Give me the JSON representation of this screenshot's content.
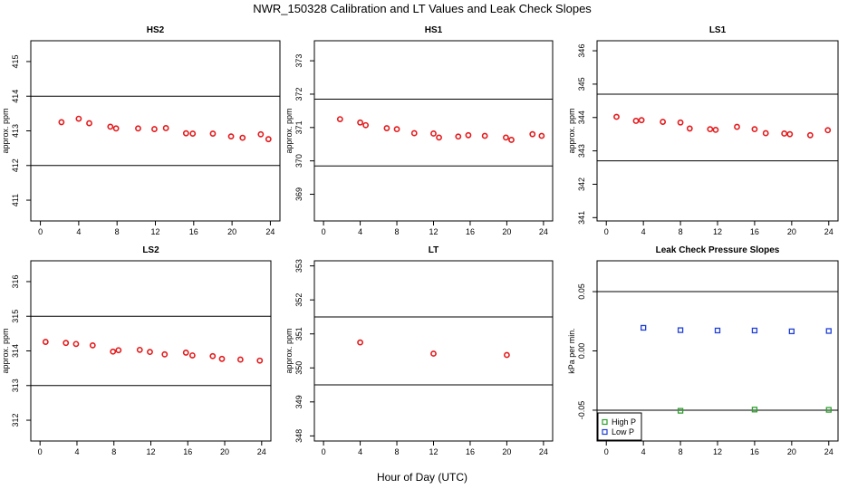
{
  "figure": {
    "title": "NWR_150328  Calibration and LT Values and Leak Check Slopes",
    "xlabel": "Hour of Day (UTC)"
  },
  "chart_data": [
    {
      "id": "hs2",
      "type": "scatter",
      "title": "HS2",
      "ylabel": "approx. ppm",
      "xlim": [
        -1,
        25
      ],
      "ylim": [
        410.4,
        415.6
      ],
      "xticks": [
        0,
        4,
        8,
        12,
        16,
        20,
        24
      ],
      "yticks": [
        411,
        412,
        413,
        414,
        415
      ],
      "hlines": [
        414,
        412
      ],
      "series": [
        {
          "name": "values",
          "color": "#e41a1c",
          "marker": "circle",
          "x": [
            2.2,
            4.0,
            5.1,
            7.3,
            7.9,
            10.2,
            11.9,
            13.1,
            15.2,
            15.9,
            18.0,
            19.9,
            21.1,
            23.0,
            23.8
          ],
          "y": [
            413.25,
            413.35,
            413.22,
            413.12,
            413.07,
            413.07,
            413.05,
            413.08,
            412.93,
            412.92,
            412.92,
            412.84,
            412.8,
            412.9,
            412.76
          ]
        }
      ]
    },
    {
      "id": "hs1",
      "type": "scatter",
      "title": "HS1",
      "ylabel": "approx. ppm",
      "xlim": [
        -1,
        25
      ],
      "ylim": [
        368.2,
        373.6
      ],
      "xticks": [
        0,
        4,
        8,
        12,
        16,
        20,
        24
      ],
      "yticks": [
        369,
        370,
        371,
        372,
        373
      ],
      "hlines": [
        371.85,
        369.85
      ],
      "series": [
        {
          "name": "values",
          "color": "#e41a1c",
          "marker": "circle",
          "x": [
            1.8,
            4.0,
            4.6,
            6.9,
            8.0,
            9.9,
            12.0,
            12.6,
            14.7,
            15.8,
            17.6,
            19.9,
            20.5,
            22.8,
            23.8
          ],
          "y": [
            371.25,
            371.15,
            371.07,
            370.98,
            370.95,
            370.83,
            370.82,
            370.7,
            370.73,
            370.77,
            370.75,
            370.7,
            370.63,
            370.8,
            370.75
          ]
        }
      ]
    },
    {
      "id": "ls1",
      "type": "scatter",
      "title": "LS1",
      "ylabel": "approx. ppm",
      "xlim": [
        -1,
        25
      ],
      "ylim": [
        340.9,
        346.3
      ],
      "xticks": [
        0,
        4,
        8,
        12,
        16,
        20,
        24
      ],
      "yticks": [
        341,
        342,
        343,
        344,
        345,
        346
      ],
      "hlines": [
        344.7,
        342.7
      ],
      "series": [
        {
          "name": "values",
          "color": "#e41a1c",
          "marker": "circle",
          "x": [
            1.1,
            3.2,
            3.8,
            6.1,
            8.0,
            9.0,
            11.2,
            11.8,
            14.1,
            16.0,
            17.2,
            19.2,
            19.8,
            22.0,
            23.9
          ],
          "y": [
            344.02,
            343.9,
            343.92,
            343.87,
            343.85,
            343.67,
            343.65,
            343.63,
            343.72,
            343.65,
            343.53,
            343.52,
            343.5,
            343.47,
            343.62
          ]
        }
      ]
    },
    {
      "id": "ls2",
      "type": "scatter",
      "title": "LS2",
      "ylabel": "approx. ppm",
      "xlim": [
        -1,
        25
      ],
      "ylim": [
        311.4,
        316.6
      ],
      "xticks": [
        0,
        4,
        8,
        12,
        16,
        20,
        24
      ],
      "yticks": [
        312,
        313,
        314,
        315,
        316
      ],
      "hlines": [
        315,
        313
      ],
      "series": [
        {
          "name": "values",
          "color": "#e41a1c",
          "marker": "circle",
          "x": [
            0.6,
            2.8,
            3.9,
            5.7,
            7.9,
            8.5,
            10.8,
            11.9,
            13.5,
            15.8,
            16.5,
            18.7,
            19.7,
            21.7,
            23.8
          ],
          "y": [
            314.26,
            314.23,
            314.2,
            314.16,
            313.98,
            314.02,
            314.03,
            313.97,
            313.9,
            313.95,
            313.87,
            313.85,
            313.77,
            313.75,
            313.72
          ]
        }
      ]
    },
    {
      "id": "lt",
      "type": "scatter",
      "title": "LT",
      "ylabel": "approx. ppm",
      "xlim": [
        -1,
        25
      ],
      "ylim": [
        347.85,
        353.15
      ],
      "xticks": [
        0,
        4,
        8,
        12,
        16,
        20,
        24
      ],
      "yticks": [
        348,
        349,
        350,
        351,
        352,
        353
      ],
      "hlines": [
        351.5,
        349.5
      ],
      "series": [
        {
          "name": "values",
          "color": "#e41a1c",
          "marker": "circle",
          "x": [
            4.0,
            12.0,
            20.0
          ],
          "y": [
            350.75,
            350.42,
            350.38
          ]
        }
      ]
    },
    {
      "id": "leak",
      "type": "scatter",
      "title": "Leak Check Pressure Slopes",
      "ylabel": "kPa per min.",
      "xlim": [
        -1,
        25
      ],
      "ylim": [
        -0.076,
        0.076
      ],
      "xticks": [
        0,
        4,
        8,
        12,
        16,
        20,
        24
      ],
      "yticks": [
        -0.05,
        0.0,
        0.05
      ],
      "ytick_labels": [
        "-0.05",
        "0.00",
        "0.05"
      ],
      "hlines": [
        0.05,
        -0.05
      ],
      "legend": {
        "position": "bottom-left",
        "entries": [
          "High P",
          "Low P"
        ]
      },
      "series": [
        {
          "name": "High P",
          "color": "#2ca02c",
          "marker": "square",
          "x": [
            8,
            16,
            24
          ],
          "y": [
            -0.0505,
            -0.0495,
            -0.0497
          ]
        },
        {
          "name": "Low P",
          "color": "#1f3fd6",
          "marker": "square",
          "x": [
            4,
            8,
            12,
            16,
            20,
            24
          ],
          "y": [
            0.0195,
            0.0175,
            0.0172,
            0.0172,
            0.0165,
            0.0168
          ]
        }
      ]
    }
  ]
}
